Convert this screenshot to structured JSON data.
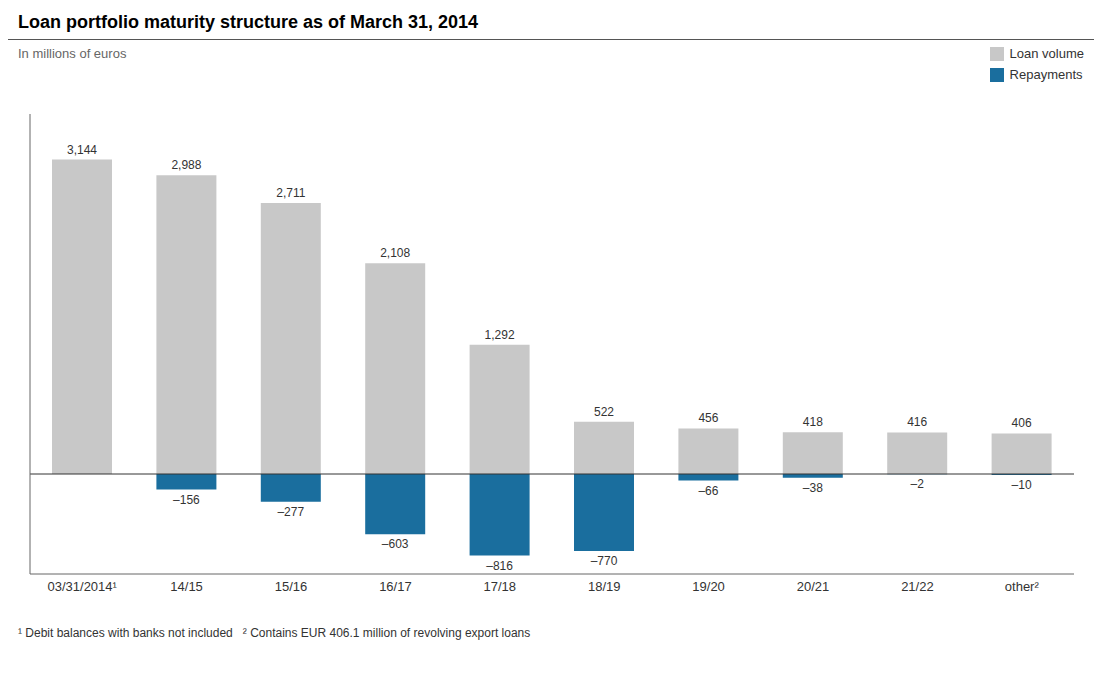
{
  "chart_data": {
    "type": "bar",
    "title": "Loan portfolio maturity structure as of March 31, 2014",
    "subtitle": "In millions of euros",
    "categories": [
      "03/31/2014¹",
      "14/15",
      "15/16",
      "16/17",
      "17/18",
      "18/19",
      "19/20",
      "20/21",
      "21/22",
      "other²"
    ],
    "series": [
      {
        "name": "Loan volume",
        "color": "#c8c8c8",
        "values": [
          3144,
          2988,
          2711,
          2108,
          1292,
          522,
          456,
          418,
          416,
          406
        ],
        "value_labels": [
          "3,144",
          "2,988",
          "2,711",
          "2,108",
          "1,292",
          "522",
          "456",
          "418",
          "416",
          "406"
        ]
      },
      {
        "name": "Repayments",
        "color": "#1a6e9e",
        "values": [
          0,
          -156,
          -277,
          -603,
          -816,
          -770,
          -66,
          -38,
          -2,
          -10
        ],
        "value_labels": [
          null,
          "–156",
          "–277",
          "–603",
          "–816",
          "–770",
          "–66",
          "–38",
          "–2",
          "–10"
        ]
      }
    ],
    "ylim": [
      -1000,
      3600
    ],
    "grid": false,
    "legend": "upper right",
    "data_labels": true,
    "tick_labels": "x",
    "footnote": "¹ Debit balances with banks not included   ² Contains EUR 406.1 million of revolving export loans"
  }
}
